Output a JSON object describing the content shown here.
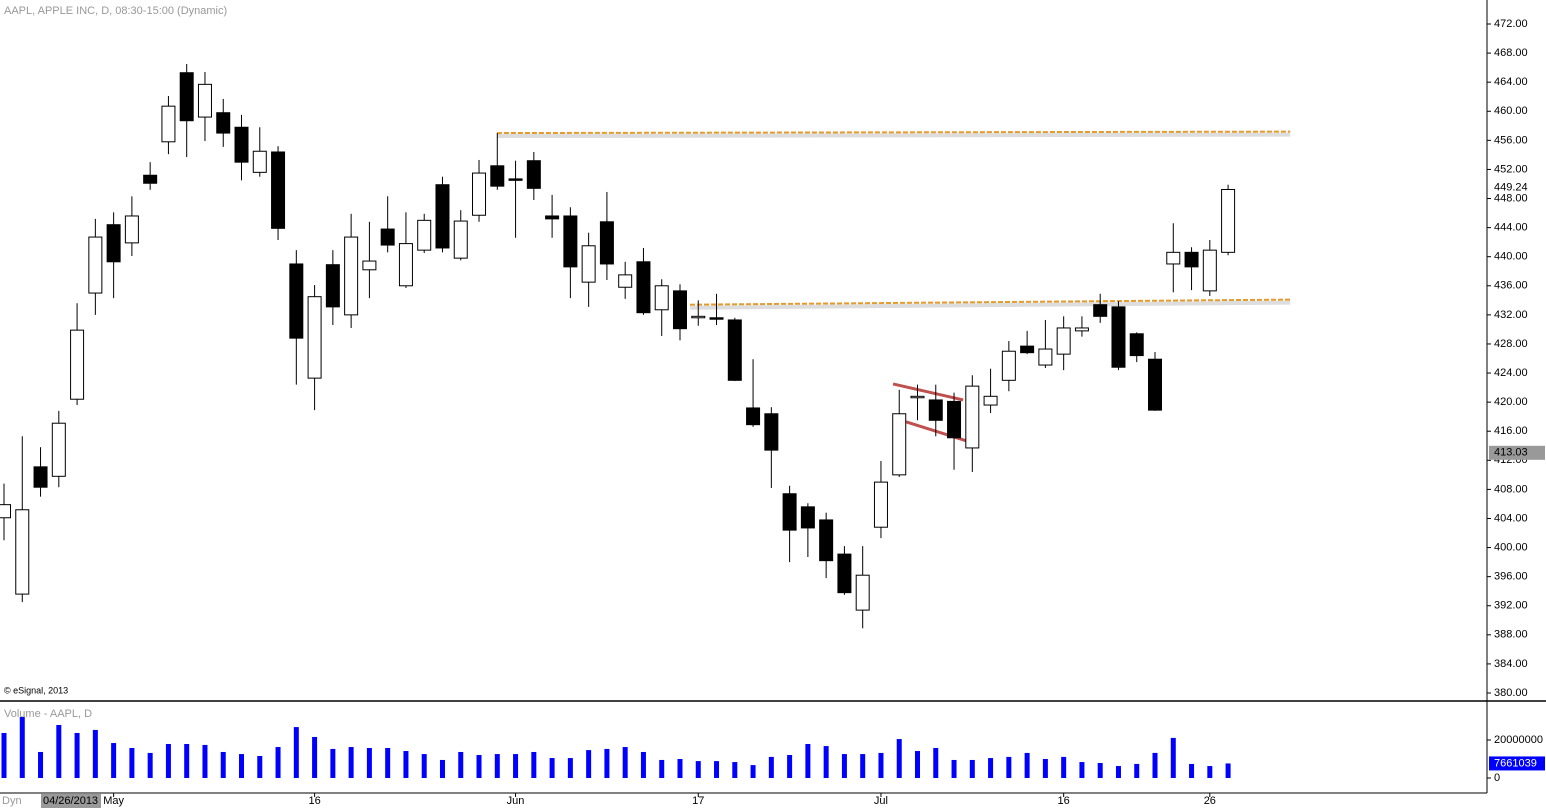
{
  "chart_data": {
    "type": "candlestick",
    "title": "AAPL, APPLE INC, D, 08:30-15:00 (Dynamic)",
    "copyright": "© eSignal, 2013",
    "pane_label": "Dyn",
    "cursor_date": "04/26/2013",
    "cursor_price": 413.03,
    "categories": [
      null,
      null,
      null,
      null,
      null,
      null,
      "May",
      null,
      null,
      null,
      null,
      null,
      null,
      null,
      null,
      null,
      null,
      "16",
      null,
      null,
      null,
      null,
      null,
      null,
      null,
      null,
      null,
      null,
      "Jun",
      null,
      null,
      null,
      null,
      null,
      null,
      null,
      null,
      null,
      "17",
      null,
      null,
      null,
      null,
      null,
      null,
      null,
      null,
      null,
      "Jul",
      null,
      null,
      null,
      null,
      null,
      null,
      null,
      null,
      null,
      "16",
      null,
      null,
      null,
      null,
      null,
      null,
      null,
      "26",
      null
    ],
    "open": [
      404.1,
      393.6,
      411.1,
      409.8,
      420.4,
      435.0,
      444.4,
      441.9,
      451.2,
      455.8,
      465.3,
      459.2,
      459.8,
      457.8,
      451.6,
      454.4,
      439.0,
      423.3,
      438.9,
      432.0,
      438.2,
      443.8,
      436.0,
      440.9,
      449.9,
      439.8,
      445.7,
      452.5,
      450.7,
      453.2,
      445.6,
      445.6,
      436.5,
      444.8,
      435.8,
      439.3,
      432.7,
      435.3,
      431.6,
      431.6,
      431.3,
      419.2,
      418.4,
      407.4,
      405.6,
      403.8,
      399.1,
      391.4,
      402.8,
      410.0,
      420.6,
      420.3,
      420.1,
      413.7,
      419.6,
      423.0,
      427.7,
      425.1,
      426.6,
      429.8,
      433.4,
      433.1,
      429.4,
      425.9,
      439.0,
      440.6,
      435.3,
      440.6
    ],
    "high": [
      408.8,
      415.3,
      413.8,
      418.8,
      433.6,
      445.2,
      446.1,
      448.3,
      453.0,
      462.1,
      466.5,
      465.4,
      461.7,
      459.5,
      457.8,
      455.2,
      440.9,
      436.1,
      440.9,
      445.9,
      444.8,
      448.3,
      446.1,
      445.9,
      451.0,
      446.4,
      453.3,
      457.0,
      453.2,
      454.4,
      448.5,
      446.8,
      443.3,
      448.9,
      439.3,
      441.2,
      436.9,
      436.2,
      434.0,
      434.9,
      431.6,
      425.9,
      419.3,
      408.5,
      406.1,
      404.8,
      400.2,
      400.2,
      411.9,
      421.7,
      422.4,
      422.4,
      421.3,
      423.7,
      424.6,
      428.4,
      429.8,
      431.3,
      431.8,
      431.8,
      434.9,
      433.9,
      429.6,
      426.9,
      444.6,
      441.3,
      442.3,
      449.9
    ],
    "low": [
      401.0,
      392.5,
      407.0,
      408.3,
      419.6,
      432.0,
      434.3,
      440.1,
      449.2,
      454.1,
      453.7,
      455.9,
      455.1,
      450.5,
      451.0,
      442.3,
      422.4,
      418.9,
      430.6,
      430.2,
      434.3,
      440.6,
      435.7,
      440.5,
      440.6,
      439.5,
      444.8,
      449.2,
      442.6,
      447.8,
      442.6,
      434.3,
      433.1,
      436.8,
      434.2,
      432.0,
      429.1,
      428.5,
      430.5,
      430.6,
      422.9,
      416.6,
      408.2,
      398.0,
      398.7,
      395.8,
      393.5,
      388.9,
      401.3,
      409.7,
      417.5,
      415.3,
      410.7,
      410.4,
      418.5,
      421.5,
      426.6,
      424.7,
      424.4,
      429.0,
      430.9,
      424.4,
      425.5,
      418.8,
      435.1,
      435.4,
      434.6,
      440.2
    ],
    "close": [
      405.9,
      405.2,
      408.3,
      417.1,
      429.9,
      442.7,
      439.3,
      445.6,
      450.1,
      460.7,
      458.7,
      463.7,
      457.0,
      453.0,
      454.5,
      443.9,
      428.8,
      434.5,
      433.1,
      442.7,
      439.4,
      441.6,
      441.8,
      445.0,
      441.2,
      444.9,
      451.5,
      449.7,
      450.5,
      449.4,
      445.2,
      438.6,
      441.5,
      439.0,
      437.5,
      432.3,
      436.0,
      430.1,
      431.8,
      431.4,
      423.0,
      416.9,
      413.4,
      402.4,
      402.7,
      398.2,
      393.8,
      396.2,
      409.0,
      418.4,
      420.8,
      417.5,
      415.1,
      422.2,
      420.8,
      427.0,
      426.8,
      427.3,
      430.2,
      430.2,
      431.8,
      424.8,
      426.4,
      418.9,
      440.6,
      438.6,
      440.9,
      449.24
    ],
    "up_color": "#ffffff",
    "down_color": "#000000",
    "ylim": [
      378.9,
      475.3
    ],
    "yticks": [
      {
        "value": 380,
        "label": "380.00"
      },
      {
        "value": 384,
        "label": "384.00"
      },
      {
        "value": 388,
        "label": "388.00"
      },
      {
        "value": 392,
        "label": "392.00"
      },
      {
        "value": 396,
        "label": "396.00"
      },
      {
        "value": 400,
        "label": "400.00"
      },
      {
        "value": 404,
        "label": "404.00"
      },
      {
        "value": 408,
        "label": "408.00"
      },
      {
        "value": 412,
        "label": "412.00"
      },
      {
        "value": 416,
        "label": "416.00"
      },
      {
        "value": 420,
        "label": "420.00"
      },
      {
        "value": 424,
        "label": "424.00"
      },
      {
        "value": 428,
        "label": "428.00"
      },
      {
        "value": 432,
        "label": "432.00"
      },
      {
        "value": 436,
        "label": "436.00"
      },
      {
        "value": 440,
        "label": "440.00"
      },
      {
        "value": 444,
        "label": "444.00"
      },
      {
        "value": 448,
        "label": "448.00"
      },
      {
        "value": 452,
        "label": "452.00"
      },
      {
        "value": 456,
        "label": "456.00"
      },
      {
        "value": 460,
        "label": "460.00"
      },
      {
        "value": 464,
        "label": "464.00"
      },
      {
        "value": 468,
        "label": "468.00"
      },
      {
        "value": 472,
        "label": "472.00"
      }
    ],
    "lines": [
      {
        "x": [
          26.98,
          70.4
        ],
        "y": [
          457.0,
          457.2
        ],
        "color": "#e69a2e",
        "dash": true
      },
      {
        "x": [
          37.55,
          70.4
        ],
        "y": [
          433.4,
          434.1
        ],
        "color": "#e69a2e",
        "dash": true
      },
      {
        "x": [
          48.66,
          52.5
        ],
        "y": [
          422.5,
          420.3
        ],
        "color": "#c0504d",
        "dash": false
      },
      {
        "x": [
          49.37,
          52.65
        ],
        "y": [
          417.3,
          414.7
        ],
        "color": "#c0504d",
        "dash": false
      }
    ],
    "volume": {
      "title": "Volume - AAPL, D",
      "color": "#0000ff",
      "values": [
        23700000,
        32100000,
        13700000,
        27900000,
        23700000,
        25300000,
        18400000,
        15800000,
        13200000,
        17900000,
        17900000,
        17400000,
        13700000,
        12600000,
        11600000,
        16300000,
        26800000,
        21600000,
        15300000,
        16300000,
        15800000,
        15800000,
        14200000,
        12600000,
        9500000,
        13700000,
        12100000,
        12600000,
        12600000,
        13700000,
        10500000,
        10500000,
        14700000,
        15300000,
        16300000,
        13700000,
        9500000,
        10000000,
        8900000,
        8900000,
        8400000,
        6800000,
        11100000,
        12100000,
        17900000,
        16800000,
        12600000,
        12600000,
        13200000,
        20500000,
        14200000,
        15800000,
        9500000,
        9500000,
        10500000,
        11100000,
        13200000,
        10000000,
        11100000,
        8400000,
        7900000,
        6300000,
        7400000,
        13200000,
        21100000,
        7400000,
        6300000,
        7661039
      ],
      "ylim": [
        -3680000,
        39470000
      ],
      "yticks": [
        0,
        20000000
      ]
    }
  }
}
